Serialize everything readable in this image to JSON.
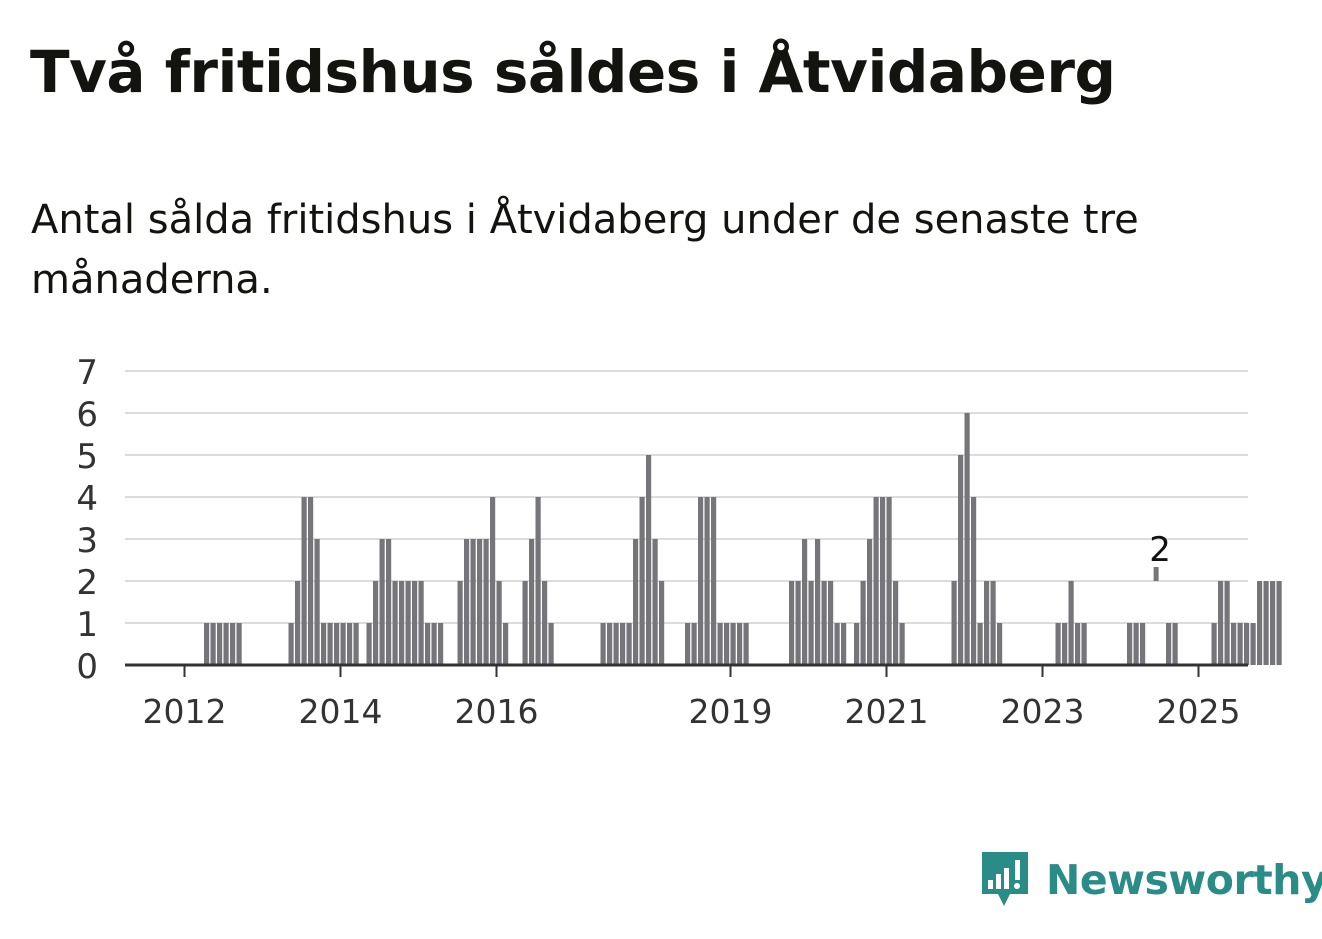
{
  "title": "Två fritidshus såldes i Åtvidaberg",
  "subtitle": "Antal sålda fritidshus i Åtvidaberg under de senaste tre månaderna.",
  "logo": {
    "text": "Newsworthy",
    "icon": "newsworthy-chart-bubble-icon",
    "color": "#2a8c87"
  },
  "colors": {
    "bar": "#76757a",
    "highlight": "#1fa39a",
    "grid": "#dcdcdc",
    "axis": "#333333",
    "text": "#333333"
  },
  "chart_data": {
    "type": "bar",
    "title": "Två fritidshus såldes i Åtvidaberg",
    "subtitle": "Antal sålda fritidshus i Åtvidaberg under de senaste tre månaderna.",
    "xlabel": "",
    "ylabel": "",
    "ylim": [
      0,
      7
    ],
    "yticks": [
      0,
      1,
      2,
      3,
      4,
      5,
      6,
      7
    ],
    "grid": true,
    "start_month": "2011-10",
    "end_month": "2025-01",
    "xtick_labels": [
      "2012",
      "2014",
      "2016",
      "2019",
      "2021",
      "2023",
      "2025"
    ],
    "xtick_months": [
      "2012-07",
      "2014-07",
      "2016-07",
      "2019-07",
      "2021-07",
      "2023-07",
      "2025-07"
    ],
    "highlight": {
      "month": "2025-01",
      "value": 2,
      "label": "2"
    },
    "values": [
      0,
      0,
      0,
      0,
      0,
      0,
      0,
      0,
      0,
      0,
      0,
      0,
      1,
      1,
      1,
      1,
      1,
      1,
      0,
      0,
      0,
      0,
      0,
      0,
      0,
      1,
      2,
      4,
      4,
      3,
      1,
      1,
      1,
      1,
      1,
      1,
      0,
      1,
      2,
      3,
      3,
      2,
      2,
      2,
      2,
      2,
      1,
      1,
      1,
      0,
      0,
      2,
      3,
      3,
      3,
      3,
      4,
      2,
      1,
      0,
      0,
      2,
      3,
      4,
      2,
      1,
      0,
      0,
      0,
      0,
      0,
      0,
      0,
      1,
      1,
      1,
      1,
      1,
      3,
      4,
      5,
      3,
      2,
      0,
      0,
      0,
      1,
      1,
      4,
      4,
      4,
      1,
      1,
      1,
      1,
      1,
      0,
      0,
      0,
      0,
      0,
      0,
      2,
      2,
      3,
      2,
      3,
      2,
      2,
      1,
      1,
      0,
      1,
      2,
      3,
      4,
      4,
      4,
      2,
      1,
      0,
      0,
      0,
      0,
      0,
      0,
      0,
      2,
      5,
      6,
      4,
      1,
      2,
      2,
      1,
      0,
      0,
      0,
      0,
      0,
      0,
      0,
      0,
      1,
      1,
      2,
      1,
      1,
      0,
      0,
      0,
      0,
      0,
      0,
      1,
      1,
      1,
      0,
      0,
      0,
      1,
      1,
      0,
      0,
      0,
      0,
      0,
      1,
      2,
      2,
      1,
      1,
      1,
      1,
      2,
      2,
      2,
      2
    ]
  }
}
